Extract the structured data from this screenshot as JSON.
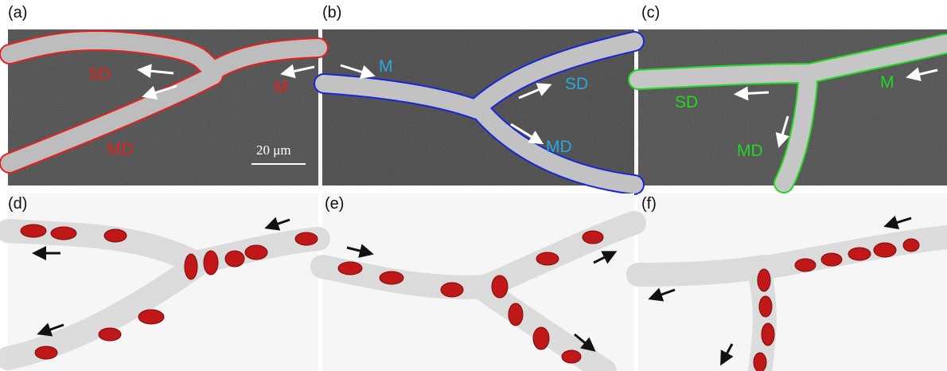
{
  "panels": [
    {
      "label": "(a)",
      "annotations": [
        "SD",
        "M",
        "MD"
      ],
      "scale_bar": "20 μm"
    },
    {
      "label": "(b)",
      "annotations": [
        "M",
        "SD",
        "MD"
      ]
    },
    {
      "label": "(c)",
      "annotations": [
        "SD",
        "M",
        "MD"
      ]
    },
    {
      "label": "(d)"
    },
    {
      "label": "(e)"
    },
    {
      "label": "(f)"
    }
  ]
}
